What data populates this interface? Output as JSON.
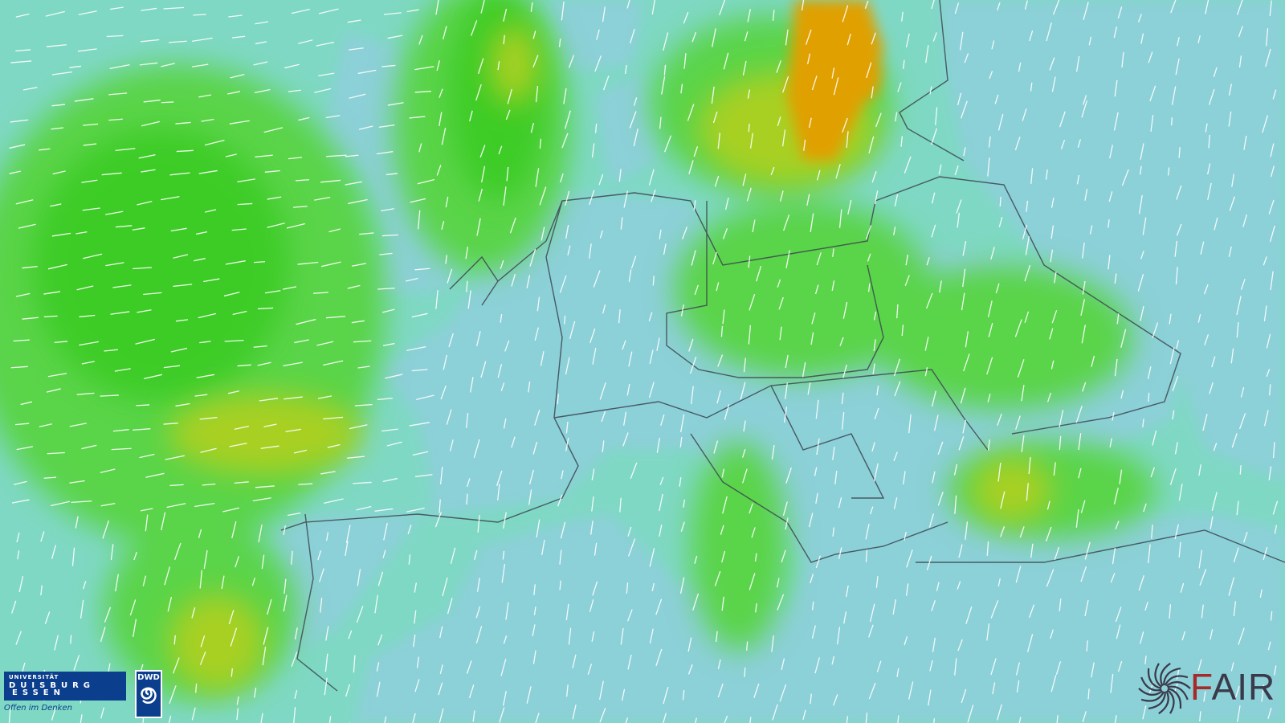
{
  "map": {
    "type": "wind-speed-forecast",
    "region": "Europe",
    "colors": {
      "calm_land": "#8cd0d8",
      "low": "#7fd8c4",
      "medium": "#5ad44a",
      "strong": "#3ccc28",
      "high": "#a8d020",
      "very_high": "#e0a000",
      "borders": "#3c4650",
      "wind_streaks": "#ffffff"
    }
  },
  "logos": {
    "ude": {
      "line1": "UNIVERSITÄT",
      "line2": "DUISBURG",
      "line3": "ESSEN",
      "slogan": "Offen im Denken"
    },
    "dwd": {
      "text": "DWD",
      "icon": "spiral-icon"
    },
    "fair": {
      "text_f": "F",
      "text_rest": "AIR",
      "icon": "swirl-icon"
    }
  }
}
